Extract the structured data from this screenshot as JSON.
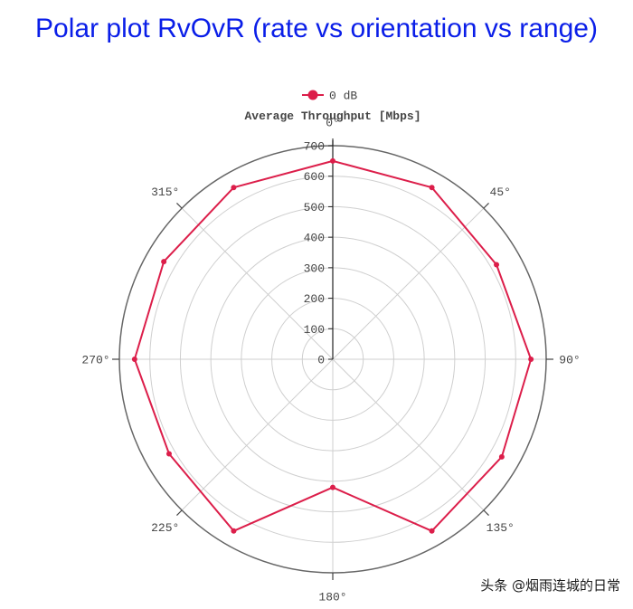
{
  "page_title": "Polar plot RvOvR (rate vs orientation vs range)",
  "watermark": "头条 @烟雨连城的日常",
  "chart_data": {
    "type": "polar-line",
    "title": "Average Throughput [Mbps]",
    "legend": {
      "placement": "top",
      "entries": [
        "0 dB"
      ]
    },
    "angle_labels": [
      "0°",
      "45°",
      "90°",
      "135°",
      "180°",
      "225°",
      "270°",
      "315°"
    ],
    "radial_ticks": [
      0,
      100,
      200,
      300,
      400,
      500,
      600,
      700
    ],
    "rlim": [
      0,
      700
    ],
    "grid": true,
    "series": [
      {
        "name": "0 dB",
        "color": "#dc1e4a",
        "points": [
          {
            "angle": 0,
            "value": 650
          },
          {
            "angle": 30,
            "value": 650
          },
          {
            "angle": 60,
            "value": 620
          },
          {
            "angle": 90,
            "value": 650
          },
          {
            "angle": 120,
            "value": 640
          },
          {
            "angle": 150,
            "value": 650
          },
          {
            "angle": 180,
            "value": 420
          },
          {
            "angle": 210,
            "value": 650
          },
          {
            "angle": 240,
            "value": 620
          },
          {
            "angle": 270,
            "value": 650
          },
          {
            "angle": 300,
            "value": 640
          },
          {
            "angle": 330,
            "value": 650
          }
        ]
      }
    ]
  }
}
